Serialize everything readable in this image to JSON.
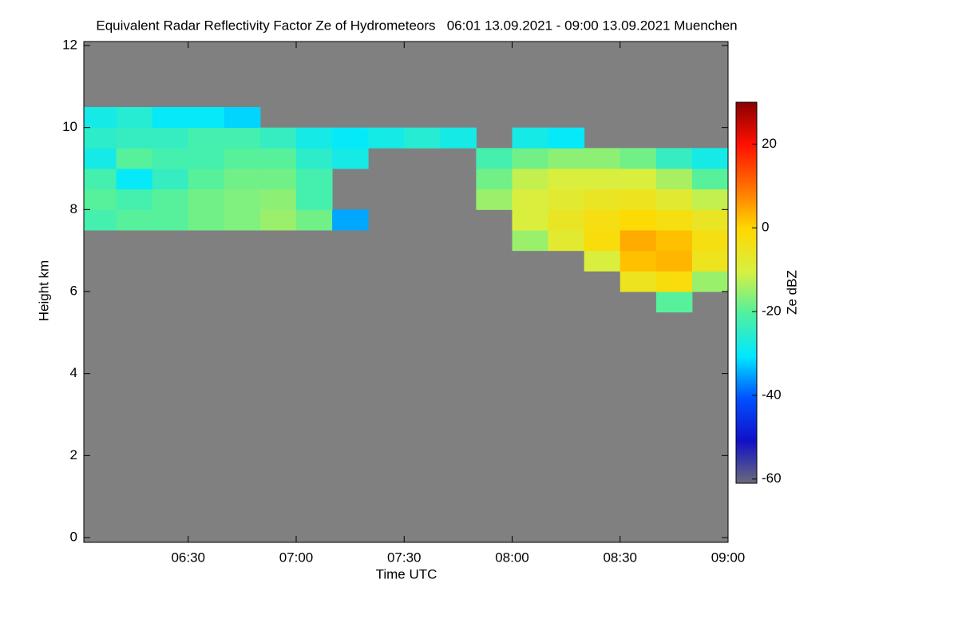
{
  "chart_data": {
    "type": "heatmap",
    "title": "Equivalent Radar Reflectivity Factor Ze of Hydrometeors   06:01 13.09.2021 - 09:00 13.09.2021 Muenchen",
    "x_label": "Time UTC",
    "y_label": "Height km",
    "colorbar_label": "Ze dBZ",
    "xlim": [
      361,
      540
    ],
    "xticks": [
      {
        "value": 390,
        "label": "06:30"
      },
      {
        "value": 420,
        "label": "07:00"
      },
      {
        "value": 450,
        "label": "07:30"
      },
      {
        "value": 480,
        "label": "08:00"
      },
      {
        "value": 510,
        "label": "08:30"
      },
      {
        "value": 540,
        "label": "09:00"
      }
    ],
    "ylim": [
      0,
      12
    ],
    "yticks": [
      0,
      2,
      4,
      6,
      8,
      10,
      12
    ],
    "zlim": [
      -61,
      30
    ],
    "zticks": [
      -60,
      -40,
      -20,
      0,
      20
    ],
    "colormap": [
      "#6a6a7a",
      "#1010c8",
      "#0050ff",
      "#00e8ff",
      "#50f0a0",
      "#d8f040",
      "#ffd800",
      "#ff7000",
      "#ff1000",
      "#8a0000"
    ],
    "background_color": "#808080",
    "x": [
      360,
      370,
      380,
      390,
      400,
      410,
      420,
      430,
      440,
      450,
      460,
      470,
      480,
      490,
      500,
      510,
      520,
      530
    ],
    "cell_width": 10,
    "y": [
      5.5,
      6.0,
      6.5,
      7.0,
      7.5,
      8.0,
      8.5,
      9.0,
      9.5,
      10.0
    ],
    "cell_height": 0.5,
    "z": [
      [
        null,
        null,
        null,
        null,
        null,
        null,
        null,
        null,
        null,
        null,
        null,
        null,
        null,
        null,
        null,
        null,
        -20,
        null
      ],
      [
        null,
        null,
        null,
        null,
        null,
        null,
        null,
        null,
        null,
        null,
        null,
        null,
        null,
        null,
        null,
        -5,
        -2,
        -15
      ],
      [
        null,
        null,
        null,
        null,
        null,
        null,
        null,
        null,
        null,
        null,
        null,
        null,
        null,
        null,
        -10,
        2,
        3,
        -5
      ],
      [
        null,
        null,
        null,
        null,
        null,
        null,
        null,
        null,
        null,
        null,
        null,
        null,
        -15,
        -8,
        -2,
        4,
        2,
        -3
      ],
      [
        -22,
        -20,
        -20,
        -18,
        -17,
        -15,
        -18,
        -35,
        null,
        null,
        null,
        null,
        -10,
        -6,
        -3,
        -1,
        -3,
        -6
      ],
      [
        -20,
        -22,
        -20,
        -18,
        -17,
        -16,
        -22,
        null,
        null,
        null,
        null,
        -15,
        -10,
        -8,
        -6,
        -5,
        -8,
        -12
      ],
      [
        -22,
        -30,
        -24,
        -20,
        -18,
        -18,
        -22,
        null,
        null,
        null,
        null,
        -18,
        -12,
        -10,
        -10,
        -10,
        -14,
        -20
      ],
      [
        -28,
        -20,
        -22,
        -22,
        -20,
        -20,
        -25,
        -28,
        null,
        null,
        null,
        -22,
        -18,
        -16,
        -16,
        -18,
        -24,
        -28
      ],
      [
        -25,
        -24,
        -24,
        -22,
        -22,
        -24,
        -28,
        -30,
        -28,
        -26,
        -28,
        null,
        -28,
        -30,
        null,
        null,
        null,
        null
      ],
      [
        -28,
        -26,
        -30,
        -30,
        -32,
        null,
        null,
        null,
        null,
        null,
        null,
        null,
        null,
        null,
        null,
        null,
        null,
        null
      ]
    ]
  }
}
